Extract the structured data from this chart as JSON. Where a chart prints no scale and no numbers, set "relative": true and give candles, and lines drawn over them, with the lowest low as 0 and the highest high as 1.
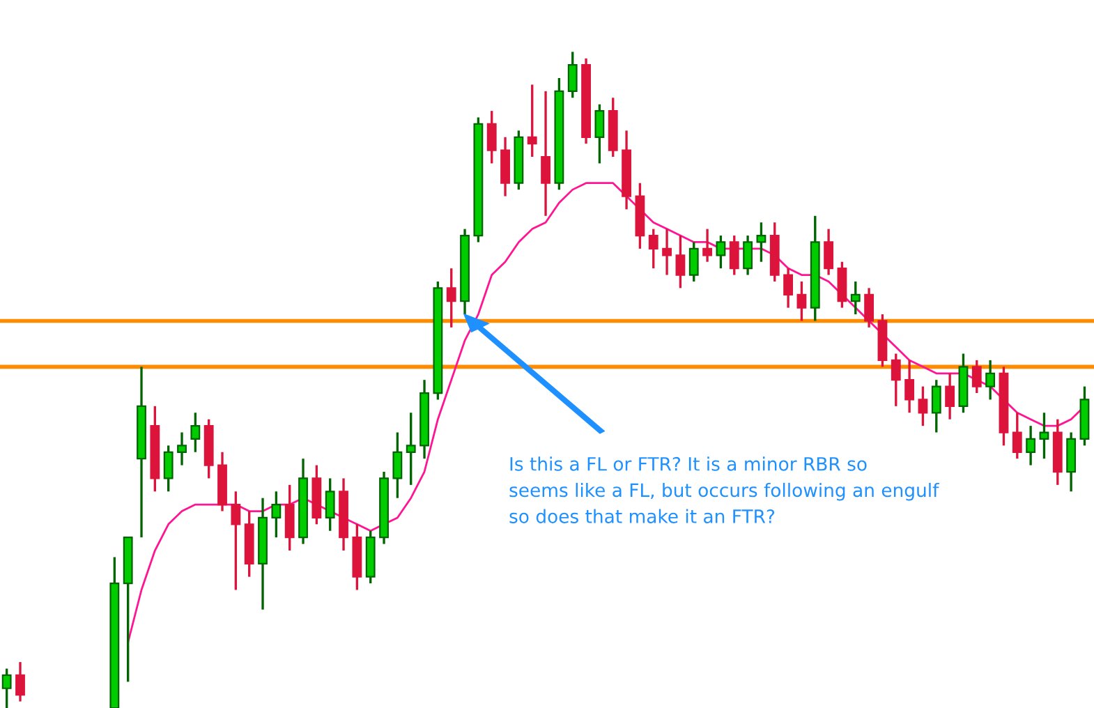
{
  "chart_data": {
    "type": "candlestick",
    "relative": true,
    "categories": [
      null,
      null,
      null,
      null,
      null,
      null,
      null,
      null,
      null,
      null,
      null,
      null,
      null,
      null,
      null,
      null,
      null,
      null,
      null,
      null,
      null,
      null,
      null,
      null,
      null,
      null,
      null,
      null,
      null,
      null,
      null,
      null,
      null,
      null,
      null,
      null,
      null,
      null,
      null,
      null,
      null,
      null,
      null,
      null,
      null,
      null,
      null,
      null,
      null,
      null,
      null,
      null,
      null,
      null,
      null,
      null,
      null,
      null,
      null,
      null,
      null,
      null,
      null,
      null,
      null,
      null,
      null,
      null,
      null,
      null,
      null,
      null,
      null,
      null,
      null,
      null,
      null,
      null,
      null,
      null,
      null
    ],
    "ohlc": [
      [
        0.03,
        0.06,
        0.0,
        0.05
      ],
      [
        0.05,
        0.07,
        0.01,
        0.02
      ],
      null,
      null,
      null,
      null,
      null,
      null,
      [
        0.0,
        0.23,
        0.0,
        0.19
      ],
      [
        0.19,
        0.26,
        0.04,
        0.26
      ],
      [
        0.38,
        0.52,
        0.26,
        0.46
      ],
      [
        0.43,
        0.46,
        0.33,
        0.35
      ],
      [
        0.35,
        0.4,
        0.33,
        0.39
      ],
      [
        0.39,
        0.42,
        0.37,
        0.4
      ],
      [
        0.41,
        0.45,
        0.39,
        0.43
      ],
      [
        0.43,
        0.44,
        0.35,
        0.37
      ],
      [
        0.37,
        0.39,
        0.3,
        0.31
      ],
      [
        0.31,
        0.33,
        0.18,
        0.28
      ],
      [
        0.28,
        0.3,
        0.2,
        0.22
      ],
      [
        0.22,
        0.32,
        0.15,
        0.29
      ],
      [
        0.29,
        0.33,
        0.26,
        0.31
      ],
      [
        0.31,
        0.34,
        0.24,
        0.26
      ],
      [
        0.26,
        0.38,
        0.25,
        0.35
      ],
      [
        0.35,
        0.37,
        0.28,
        0.29
      ],
      [
        0.29,
        0.35,
        0.27,
        0.33
      ],
      [
        0.33,
        0.35,
        0.24,
        0.26
      ],
      [
        0.26,
        0.28,
        0.18,
        0.2
      ],
      [
        0.2,
        0.27,
        0.19,
        0.26
      ],
      [
        0.26,
        0.36,
        0.25,
        0.35
      ],
      [
        0.35,
        0.42,
        0.32,
        0.39
      ],
      [
        0.39,
        0.45,
        0.34,
        0.4
      ],
      [
        0.4,
        0.5,
        0.38,
        0.48
      ],
      [
        0.48,
        0.65,
        0.47,
        0.64
      ],
      [
        0.64,
        0.67,
        0.58,
        0.62
      ],
      [
        0.62,
        0.73,
        0.6,
        0.72
      ],
      [
        0.72,
        0.9,
        0.71,
        0.89
      ],
      [
        0.89,
        0.91,
        0.83,
        0.85
      ],
      [
        0.85,
        0.87,
        0.78,
        0.8
      ],
      [
        0.8,
        0.88,
        0.79,
        0.87
      ],
      [
        0.87,
        0.95,
        0.84,
        0.86
      ],
      [
        0.84,
        0.94,
        0.75,
        0.8
      ],
      [
        0.8,
        0.96,
        0.79,
        0.94
      ],
      [
        0.94,
        1.0,
        0.93,
        0.98
      ],
      [
        0.98,
        0.99,
        0.86,
        0.87
      ],
      [
        0.87,
        0.92,
        0.83,
        0.91
      ],
      [
        0.91,
        0.93,
        0.84,
        0.85
      ],
      [
        0.85,
        0.88,
        0.76,
        0.78
      ],
      [
        0.78,
        0.8,
        0.7,
        0.72
      ],
      [
        0.72,
        0.73,
        0.67,
        0.7
      ],
      [
        0.7,
        0.73,
        0.66,
        0.69
      ],
      [
        0.69,
        0.72,
        0.64,
        0.66
      ],
      [
        0.66,
        0.71,
        0.65,
        0.7
      ],
      [
        0.7,
        0.73,
        0.68,
        0.69
      ],
      [
        0.69,
        0.72,
        0.67,
        0.71
      ],
      [
        0.71,
        0.72,
        0.66,
        0.67
      ],
      [
        0.67,
        0.72,
        0.66,
        0.71
      ],
      [
        0.71,
        0.74,
        0.68,
        0.72
      ],
      [
        0.72,
        0.74,
        0.65,
        0.66
      ],
      [
        0.66,
        0.67,
        0.61,
        0.63
      ],
      [
        0.63,
        0.65,
        0.59,
        0.61
      ],
      [
        0.61,
        0.75,
        0.59,
        0.71
      ],
      [
        0.71,
        0.73,
        0.66,
        0.67
      ],
      [
        0.67,
        0.68,
        0.61,
        0.62
      ],
      [
        0.62,
        0.65,
        0.6,
        0.63
      ],
      [
        0.63,
        0.64,
        0.58,
        0.59
      ],
      [
        0.59,
        0.6,
        0.52,
        0.53
      ],
      [
        0.53,
        0.54,
        0.46,
        0.5
      ],
      [
        0.5,
        0.53,
        0.45,
        0.47
      ],
      [
        0.47,
        0.49,
        0.43,
        0.45
      ],
      [
        0.45,
        0.5,
        0.42,
        0.49
      ],
      [
        0.49,
        0.51,
        0.44,
        0.46
      ],
      [
        0.46,
        0.54,
        0.45,
        0.52
      ],
      [
        0.52,
        0.53,
        0.48,
        0.49
      ],
      [
        0.49,
        0.53,
        0.47,
        0.51
      ],
      [
        0.51,
        0.52,
        0.4,
        0.42
      ],
      [
        0.42,
        0.45,
        0.38,
        0.39
      ],
      [
        0.39,
        0.43,
        0.37,
        0.41
      ],
      [
        0.41,
        0.45,
        0.38,
        0.42
      ],
      [
        0.42,
        0.44,
        0.34,
        0.36
      ],
      [
        0.36,
        0.42,
        0.33,
        0.41
      ],
      [
        0.41,
        0.49,
        0.4,
        0.47
      ]
    ],
    "colors": [
      "#00cc00",
      "#dc143c",
      null,
      null,
      null,
      null,
      null,
      null,
      "#00cc00",
      "#00cc00",
      "#00cc00",
      "#dc143c",
      "#00cc00",
      "#00cc00",
      "#00cc00",
      "#dc143c",
      "#dc143c",
      "#dc143c",
      "#dc143c",
      "#00cc00",
      "#00cc00",
      "#dc143c",
      "#00cc00",
      "#dc143c",
      "#00cc00",
      "#dc143c",
      "#dc143c",
      "#00cc00",
      "#00cc00",
      "#00cc00",
      "#00cc00",
      "#00cc00",
      "#00cc00",
      "#dc143c",
      "#00cc00",
      "#00cc00",
      "#dc143c",
      "#dc143c",
      "#00cc00",
      "#dc143c",
      "#dc143c",
      "#00cc00",
      "#00cc00",
      "#dc143c",
      "#00cc00",
      "#dc143c",
      "#dc143c",
      "#dc143c",
      "#dc143c",
      "#dc143c",
      "#dc143c",
      "#00cc00",
      "#dc143c",
      "#00cc00",
      "#dc143c",
      "#00cc00",
      "#00cc00",
      "#dc143c",
      "#dc143c",
      "#dc143c",
      "#00cc00",
      "#dc143c",
      "#dc143c",
      "#00cc00",
      "#dc143c",
      "#dc143c",
      "#dc143c",
      "#dc143c",
      "#dc143c",
      "#00cc00",
      "#dc143c",
      "#00cc00",
      "#dc143c",
      "#00cc00",
      "#dc143c",
      "#dc143c",
      "#00cc00",
      "#00cc00",
      "#dc143c",
      "#00cc00",
      "#00cc00"
    ],
    "series": [
      {
        "type": "line",
        "color": "#ff1493",
        "values": [
          null,
          null,
          null,
          null,
          null,
          null,
          null,
          null,
          null,
          0.1,
          0.18,
          0.24,
          0.28,
          0.3,
          0.31,
          0.31,
          0.31,
          0.31,
          0.3,
          0.3,
          0.31,
          0.31,
          0.32,
          0.31,
          0.3,
          0.29,
          0.28,
          0.27,
          0.28,
          0.29,
          0.32,
          0.36,
          0.44,
          0.5,
          0.56,
          0.6,
          0.66,
          0.68,
          0.71,
          0.73,
          0.74,
          0.77,
          0.79,
          0.8,
          0.8,
          0.8,
          0.78,
          0.76,
          0.74,
          0.73,
          0.72,
          0.71,
          0.71,
          0.7,
          0.7,
          0.7,
          0.7,
          0.69,
          0.67,
          0.66,
          0.66,
          0.65,
          0.63,
          0.61,
          0.59,
          0.57,
          0.55,
          0.53,
          0.52,
          0.51,
          0.51,
          0.51,
          0.5,
          0.49,
          0.47,
          0.45,
          0.44,
          0.43,
          0.43,
          0.44,
          0.46
        ]
      }
    ],
    "ref_lines": [
      {
        "axis": "y",
        "value": 0.59,
        "color": "#ff8c00"
      },
      {
        "axis": "y",
        "value": 0.52,
        "color": "#ff8c00"
      }
    ],
    "annotations": [
      "Is this a FL or FTR? It is a minor RBR so\nseems like a FL, but occurs following an engulf\nso does that make it an FTR?"
    ]
  }
}
